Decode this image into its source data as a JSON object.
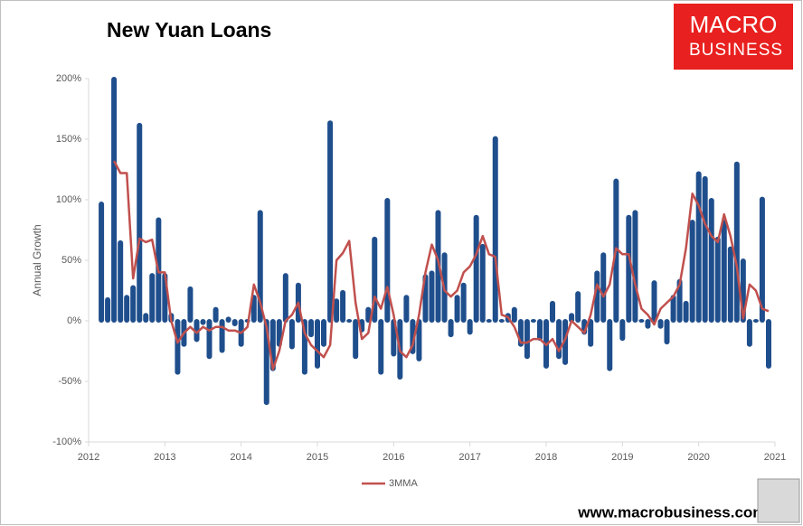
{
  "chart_data": {
    "type": "bar",
    "title": "New Yuan Loans",
    "y_label": "Annual Growth",
    "x": [
      2012.167,
      2012.25,
      2012.333,
      2012.417,
      2012.5,
      2012.583,
      2012.667,
      2012.75,
      2012.833,
      2012.917,
      2013,
      2013.083,
      2013.167,
      2013.25,
      2013.333,
      2013.417,
      2013.5,
      2013.583,
      2013.667,
      2013.75,
      2013.833,
      2013.917,
      2014,
      2014.083,
      2014.167,
      2014.25,
      2014.333,
      2014.417,
      2014.5,
      2014.583,
      2014.667,
      2014.75,
      2014.833,
      2014.917,
      2015,
      2015.083,
      2015.167,
      2015.25,
      2015.333,
      2015.417,
      2015.5,
      2015.583,
      2015.667,
      2015.75,
      2015.833,
      2015.917,
      2016,
      2016.083,
      2016.167,
      2016.25,
      2016.333,
      2016.417,
      2016.5,
      2016.583,
      2016.667,
      2016.75,
      2016.833,
      2016.917,
      2017,
      2017.083,
      2017.167,
      2017.25,
      2017.333,
      2017.417,
      2017.5,
      2017.583,
      2017.667,
      2017.75,
      2017.833,
      2017.917,
      2018,
      2018.083,
      2018.167,
      2018.25,
      2018.333,
      2018.417,
      2018.5,
      2018.583,
      2018.667,
      2018.75,
      2018.833,
      2018.917,
      2019,
      2019.083,
      2019.167,
      2019.25,
      2019.333,
      2019.417,
      2019.5,
      2019.583,
      2019.667,
      2019.75,
      2019.833,
      2019.917,
      2020,
      2020.083,
      2020.167,
      2020.25,
      2020.333,
      2020.417,
      2020.5,
      2020.583,
      2020.667,
      2020.75,
      2020.833,
      2020.917
    ],
    "series": [
      {
        "type": "bar",
        "color": "#1f4e8c",
        "values": [
          97,
          18,
          200,
          65,
          20,
          28,
          162,
          5,
          38,
          84,
          38,
          5,
          -43,
          -20,
          27,
          -16,
          -2,
          -30,
          10,
          -25,
          2,
          -3,
          -20,
          0,
          20,
          90,
          -68,
          -40,
          -20,
          38,
          -22,
          30,
          -43,
          -12,
          -38,
          -20,
          164,
          17,
          24,
          0,
          -30,
          -8,
          10,
          68,
          -43,
          100,
          -28,
          -47,
          20,
          -26,
          -32,
          37,
          40,
          90,
          55,
          -12,
          20,
          30,
          -10,
          86,
          62,
          0,
          151,
          0,
          5,
          10,
          -20,
          -30,
          0,
          -15,
          -38,
          15,
          -30,
          -35,
          5,
          23,
          -10,
          -20,
          40,
          55,
          -40,
          116,
          -15,
          86,
          90,
          0,
          -5,
          32,
          -5,
          -18,
          20,
          33,
          15,
          82,
          122,
          118,
          100,
          68,
          82,
          60,
          130,
          50,
          -20,
          0,
          101,
          -38
        ]
      },
      {
        "type": "line",
        "name": "3MMA",
        "color": "#c0504d",
        "values": [
          null,
          null,
          132,
          122,
          122,
          35,
          68,
          65,
          67,
          40,
          40,
          0,
          -18,
          -10,
          -5,
          -10,
          -5,
          -8,
          -5,
          -5,
          -8,
          -8,
          -10,
          -5,
          30,
          15,
          -5,
          -40,
          -25,
          0,
          5,
          15,
          -10,
          -20,
          -25,
          -30,
          -20,
          50,
          56,
          66,
          15,
          -15,
          -10,
          20,
          10,
          28,
          5,
          -25,
          -30,
          -20,
          5,
          40,
          63,
          50,
          25,
          20,
          25,
          40,
          45,
          55,
          70,
          55,
          53,
          5,
          3,
          -5,
          -18,
          -18,
          -15,
          -15,
          -20,
          -15,
          -25,
          -15,
          0,
          -5,
          -10,
          5,
          30,
          20,
          30,
          60,
          55,
          55,
          30,
          10,
          5,
          -3,
          10,
          15,
          20,
          30,
          60,
          105,
          95,
          80,
          70,
          65,
          88,
          70,
          45,
          2,
          30,
          25,
          10,
          8
        ]
      }
    ],
    "xlim": [
      2012,
      2021
    ],
    "xticks": [
      2012,
      2013,
      2014,
      2015,
      2016,
      2017,
      2018,
      2019,
      2020,
      2021
    ],
    "ylim": [
      -100,
      200
    ],
    "yticks": [
      {
        "value": -100,
        "label": "-100%"
      },
      {
        "value": -50,
        "label": "-50%"
      },
      {
        "value": 0,
        "label": "0%"
      },
      {
        "value": 50,
        "label": "50%"
      },
      {
        "value": 100,
        "label": "100%"
      },
      {
        "value": 150,
        "label": "150%"
      },
      {
        "value": 200,
        "label": "200%"
      }
    ],
    "legend": "bottom"
  },
  "logo": [
    "MACRO",
    "BUSINESS"
  ],
  "footer": "www.macrobusiness.com.au"
}
